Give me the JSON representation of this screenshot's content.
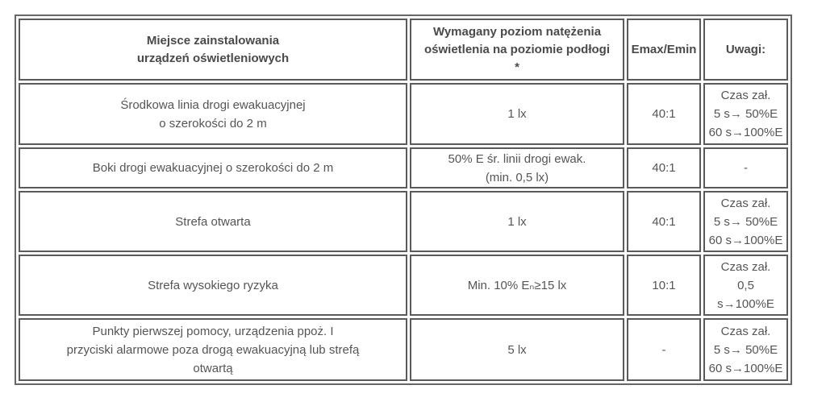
{
  "headers": [
    [
      "Miejsce zainstalowania",
      "urządzeń oświetleniowych"
    ],
    [
      "Wymagany poziom natężenia",
      "oświetlenia na poziomie podłogi",
      "*"
    ],
    [
      "Emax/Emin"
    ],
    [
      "Uwagi:"
    ]
  ],
  "rows": [
    {
      "place": [
        "Środkowa linia drogi ewakuacyjnej",
        "o szerokości do 2 m"
      ],
      "level": [
        "1 lx"
      ],
      "ratio": "40:1",
      "notes": [
        "Czas zał.",
        "5 s→ 50%E",
        "60 s→100%E"
      ]
    },
    {
      "place": [
        "Boki drogi ewakuacyjnej o szerokości do 2 m"
      ],
      "level": [
        "50% E śr. linii drogi ewak.",
        "(min. 0,5 lx)"
      ],
      "ratio": "40:1",
      "notes": [
        "-"
      ]
    },
    {
      "place": [
        "Strefa otwarta"
      ],
      "level": [
        "1 lx"
      ],
      "ratio": "40:1",
      "notes": [
        "Czas zał.",
        "5 s→ 50%E",
        "60 s→100%E"
      ]
    },
    {
      "place": [
        "Strefa wysokiego ryzyka"
      ],
      "level": [
        "Min. 10% Eₙ≥15 lx"
      ],
      "ratio": "10:1",
      "notes": [
        "Czas zał.",
        "0,5",
        "s→100%E"
      ]
    },
    {
      "place": [
        "Punkty pierwszej pomocy, urządzenia ppoż. I",
        "przyciski alarmowe poza drogą ewakuacyjną lub strefą",
        "otwartą"
      ],
      "level": [
        "5 lx"
      ],
      "ratio": "-",
      "notes": [
        "Czas zał.",
        "5 s→ 50%E",
        "60 s→100%E"
      ]
    }
  ]
}
